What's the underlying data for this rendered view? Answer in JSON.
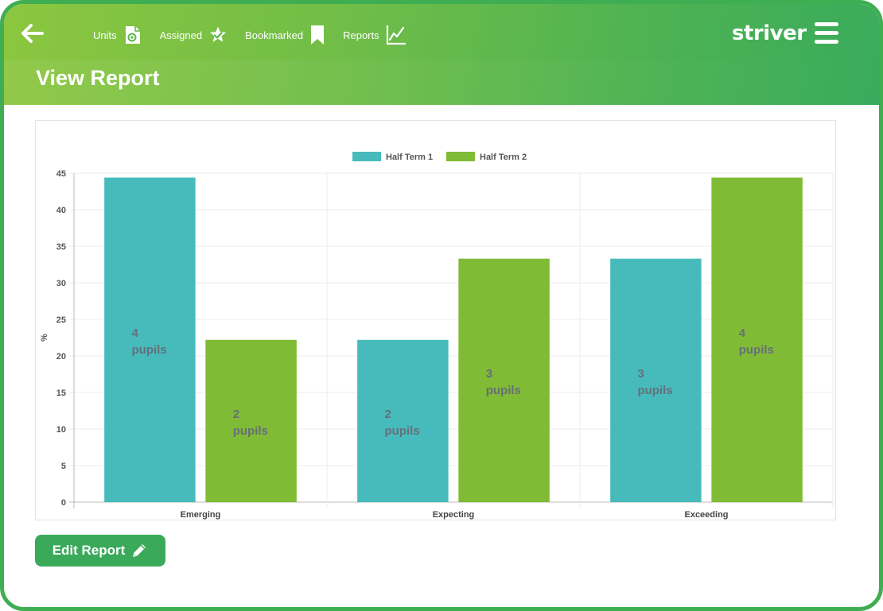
{
  "header": {
    "nav": [
      {
        "label": "Units",
        "icon": "units-icon"
      },
      {
        "label": "Assigned",
        "icon": "assigned-icon"
      },
      {
        "label": "Bookmarked",
        "icon": "bookmark-icon"
      },
      {
        "label": "Reports",
        "icon": "reports-chart-icon"
      }
    ],
    "logo": "striver",
    "page_title": "View Report"
  },
  "colors": {
    "half_term_1": "#47bbbb",
    "half_term_2": "#80bb35",
    "button": "#3aaa5a",
    "bar_label": "#666f7a"
  },
  "chart_data": {
    "type": "bar",
    "categories": [
      "Emerging",
      "Expecting",
      "Exceeding"
    ],
    "series": [
      {
        "name": "Half Term 1",
        "values": [
          44.4,
          22.2,
          33.3
        ],
        "labels": [
          [
            "4",
            "pupils"
          ],
          [
            "2",
            "pupils"
          ],
          [
            "3",
            "pupils"
          ]
        ]
      },
      {
        "name": "Half Term 2",
        "values": [
          22.2,
          33.3,
          44.4
        ],
        "labels": [
          [
            "2",
            "pupils"
          ],
          [
            "3",
            "pupils"
          ],
          [
            "4",
            "pupils"
          ]
        ]
      }
    ],
    "ylabel": "%",
    "ylim": [
      0,
      45
    ],
    "yticks": [
      "0",
      "5",
      "10",
      "15",
      "20",
      "25",
      "30",
      "35",
      "40",
      "45"
    ],
    "legend": "top",
    "grid": true
  },
  "actions": {
    "edit_label": "Edit Report"
  }
}
